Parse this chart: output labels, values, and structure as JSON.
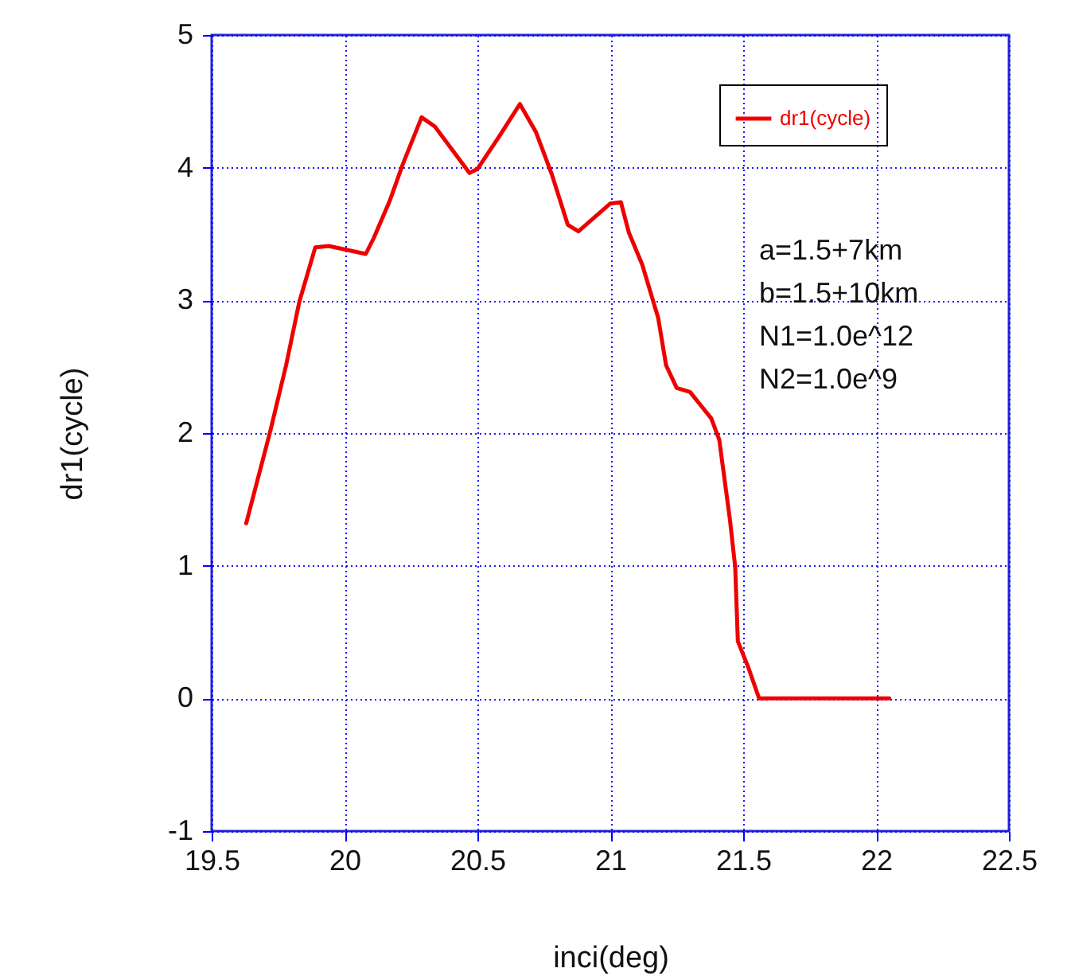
{
  "chart_data": {
    "type": "line",
    "xlabel": "inci(deg)",
    "ylabel": "dr1(cycle)",
    "xlim": [
      19.5,
      22.5
    ],
    "xticks": [
      19.5,
      20,
      20.5,
      21,
      21.5,
      22,
      22.5
    ],
    "ylim": [
      -1,
      5
    ],
    "yticks": [
      -1,
      0,
      1,
      2,
      3,
      4,
      5
    ],
    "grid": true,
    "legend": "top right",
    "line_style": "solid",
    "annotations": [
      "a=1.5+7km",
      "b=1.5+10km",
      "N1=1.0e^12",
      "N2=1.0e^9"
    ],
    "series": [
      {
        "name": "dr1(cycle)",
        "color": "#ee0000",
        "x": [
          19.63,
          19.72,
          19.78,
          19.83,
          19.89,
          19.94,
          20.08,
          20.11,
          20.17,
          20.22,
          20.29,
          20.34,
          20.47,
          20.5,
          20.58,
          20.66,
          20.72,
          20.78,
          20.84,
          20.88,
          21.0,
          21.04,
          21.07,
          21.12,
          21.18,
          21.21,
          21.25,
          21.3,
          21.38,
          21.41,
          21.45,
          21.47,
          21.48,
          21.52,
          21.56,
          22.05
        ],
        "values": [
          1.32,
          2.01,
          2.51,
          2.99,
          3.4,
          3.41,
          3.35,
          3.47,
          3.75,
          4.03,
          4.38,
          4.31,
          3.96,
          3.99,
          4.23,
          4.48,
          4.27,
          3.95,
          3.57,
          3.52,
          3.73,
          3.74,
          3.51,
          3.27,
          2.87,
          2.51,
          2.34,
          2.31,
          2.11,
          1.95,
          1.35,
          0.99,
          0.43,
          0.23,
          0,
          0
        ]
      }
    ]
  }
}
